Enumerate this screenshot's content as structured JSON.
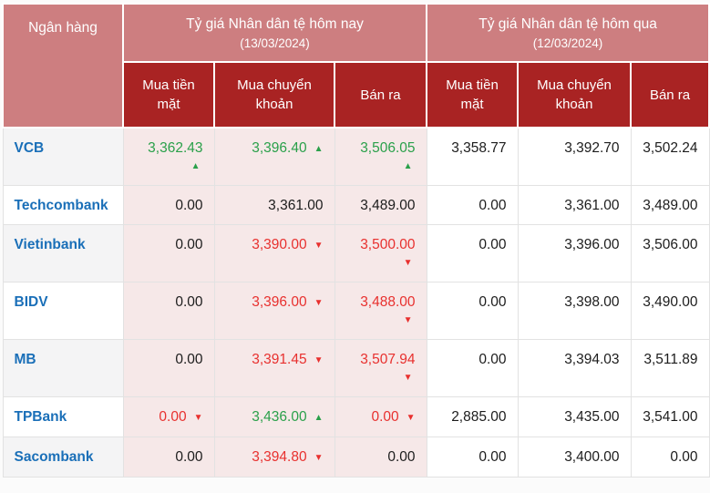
{
  "colors": {
    "header_pink": "#cd7e80",
    "header_dark_red": "#a92323",
    "today_cell_bg": "#f6e8e8",
    "alt_row_bg": "#f4f4f5",
    "bank_link_blue": "#1a6fb8",
    "up_green": "#2aa04a",
    "down_red": "#e8302e"
  },
  "table": {
    "bank_column_header": "Ngân hàng",
    "groups": [
      {
        "title": "Tỷ giá Nhân dân tệ hôm nay",
        "date": "(13/03/2024)"
      },
      {
        "title": "Tỷ giá Nhân dân tệ hôm qua",
        "date": "(12/03/2024)"
      }
    ],
    "sub_headers": [
      "Mua tiền mặt",
      "Mua chuyển khoản",
      "Bán ra"
    ],
    "rows": [
      {
        "bank": "VCB",
        "today": [
          {
            "value": "3,362.43",
            "trend": "up",
            "arrow_position": "below"
          },
          {
            "value": "3,396.40",
            "trend": "up",
            "arrow_position": "inline"
          },
          {
            "value": "3,506.05",
            "trend": "up",
            "arrow_position": "below"
          }
        ],
        "yesterday": [
          "3,358.77",
          "3,392.70",
          "3,502.24"
        ]
      },
      {
        "bank": "Techcombank",
        "today": [
          {
            "value": "0.00",
            "trend": "none",
            "arrow_position": "none"
          },
          {
            "value": "3,361.00",
            "trend": "none",
            "arrow_position": "none"
          },
          {
            "value": "3,489.00",
            "trend": "none",
            "arrow_position": "none"
          }
        ],
        "yesterday": [
          "0.00",
          "3,361.00",
          "3,489.00"
        ]
      },
      {
        "bank": "Vietinbank",
        "today": [
          {
            "value": "0.00",
            "trend": "none",
            "arrow_position": "none"
          },
          {
            "value": "3,390.00",
            "trend": "down",
            "arrow_position": "inline"
          },
          {
            "value": "3,500.00",
            "trend": "down",
            "arrow_position": "below"
          }
        ],
        "yesterday": [
          "0.00",
          "3,396.00",
          "3,506.00"
        ]
      },
      {
        "bank": "BIDV",
        "today": [
          {
            "value": "0.00",
            "trend": "none",
            "arrow_position": "none"
          },
          {
            "value": "3,396.00",
            "trend": "down",
            "arrow_position": "inline"
          },
          {
            "value": "3,488.00",
            "trend": "down",
            "arrow_position": "below"
          }
        ],
        "yesterday": [
          "0.00",
          "3,398.00",
          "3,490.00"
        ]
      },
      {
        "bank": "MB",
        "today": [
          {
            "value": "0.00",
            "trend": "none",
            "arrow_position": "none"
          },
          {
            "value": "3,391.45",
            "trend": "down",
            "arrow_position": "inline"
          },
          {
            "value": "3,507.94",
            "trend": "down",
            "arrow_position": "below"
          }
        ],
        "yesterday": [
          "0.00",
          "3,394.03",
          "3,511.89"
        ]
      },
      {
        "bank": "TPBank",
        "today": [
          {
            "value": "0.00",
            "trend": "down",
            "arrow_position": "inline"
          },
          {
            "value": "3,436.00",
            "trend": "up",
            "arrow_position": "inline"
          },
          {
            "value": "0.00",
            "trend": "down",
            "arrow_position": "inline"
          }
        ],
        "yesterday": [
          "2,885.00",
          "3,435.00",
          "3,541.00"
        ]
      },
      {
        "bank": "Sacombank",
        "today": [
          {
            "value": "0.00",
            "trend": "none",
            "arrow_position": "none"
          },
          {
            "value": "3,394.80",
            "trend": "down",
            "arrow_position": "inline"
          },
          {
            "value": "0.00",
            "trend": "none",
            "arrow_position": "none"
          }
        ],
        "yesterday": [
          "0.00",
          "3,400.00",
          "0.00"
        ]
      }
    ]
  }
}
